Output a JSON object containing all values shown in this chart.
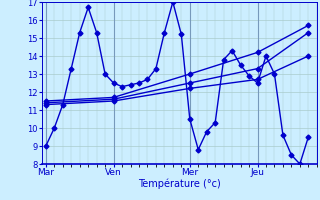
{
  "background_color": "#cceeff",
  "grid_color": "#aacccc",
  "line_color": "#0000cc",
  "vline_color": "#7799bb",
  "ylim": [
    8,
    17
  ],
  "yticks": [
    8,
    9,
    10,
    11,
    12,
    13,
    14,
    15,
    16,
    17
  ],
  "xlabel": "Température (°c)",
  "day_labels": [
    "Mar",
    "Ven",
    "Mer",
    "Jeu"
  ],
  "vline_x": [
    0,
    8,
    17,
    25,
    32
  ],
  "xlim": [
    -0.5,
    32
  ],
  "main_x": [
    0,
    1,
    2,
    3,
    4,
    5,
    6,
    7,
    8,
    9,
    10,
    11,
    12,
    13,
    14,
    15,
    16,
    17,
    18,
    19,
    20,
    21,
    22,
    23,
    24,
    25,
    26,
    27,
    28,
    29,
    30,
    31
  ],
  "main_y": [
    9.0,
    10.0,
    11.3,
    13.3,
    15.3,
    16.7,
    15.3,
    13.0,
    12.5,
    12.3,
    12.4,
    12.5,
    12.7,
    13.3,
    15.3,
    17.0,
    15.2,
    10.5,
    8.8,
    9.8,
    10.3,
    13.8,
    14.3,
    13.5,
    12.9,
    12.5,
    14.0,
    13.0,
    9.6,
    8.5,
    8.0,
    9.5
  ],
  "trend1_x": [
    0,
    8,
    17,
    25,
    31
  ],
  "trend1_y": [
    11.3,
    11.5,
    12.2,
    12.7,
    14.0
  ],
  "trend2_x": [
    0,
    8,
    17,
    25,
    31
  ],
  "trend2_y": [
    11.4,
    11.6,
    12.5,
    13.3,
    15.3
  ],
  "trend3_x": [
    0,
    8,
    17,
    25,
    31
  ],
  "trend3_y": [
    11.5,
    11.7,
    13.0,
    14.2,
    15.7
  ],
  "marker": "D",
  "markersize": 2.5,
  "linewidth": 1.0
}
